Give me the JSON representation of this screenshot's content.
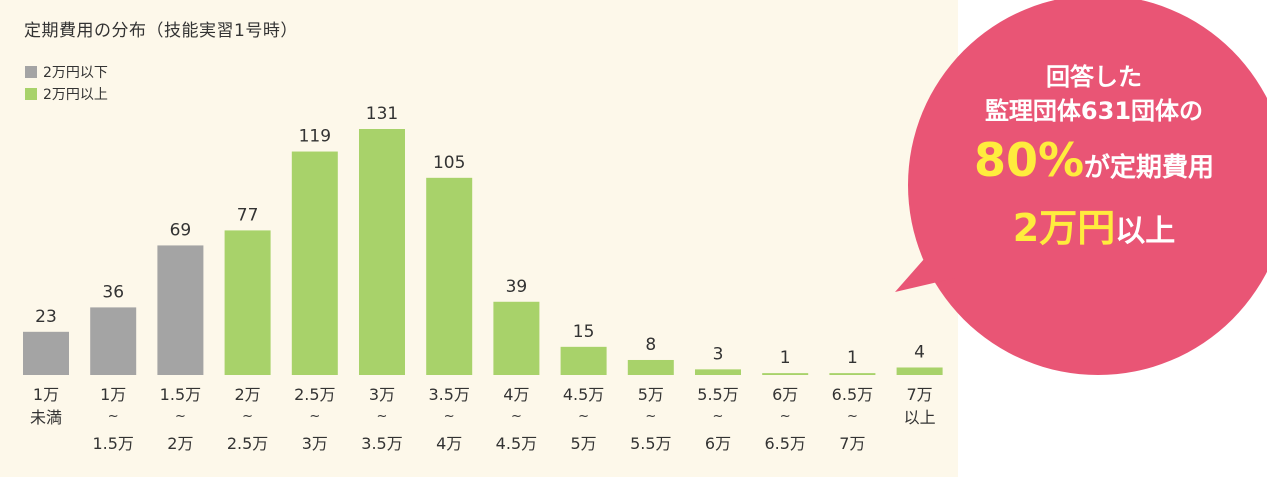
{
  "colors": {
    "panel_background": "#fdf8ea",
    "gray_bar": "#a4a4a4",
    "green_bar": "#a8d26a",
    "callout_pink": "#e95575",
    "callout_highlight": "#ffec3d"
  },
  "chart_data": {
    "type": "bar",
    "title": "定期費用の分布（技能実習1号時）",
    "legend": [
      {
        "label": "2万円以下",
        "color": "#a4a4a4"
      },
      {
        "label": "2万円以上",
        "color": "#a8d26a"
      }
    ],
    "legend_position": "top-left",
    "categories": [
      [
        "1万",
        "未満"
      ],
      [
        "1万",
        "~",
        "1.5万"
      ],
      [
        "1.5万",
        "~",
        "2万"
      ],
      [
        "2万",
        "~",
        "2.5万"
      ],
      [
        "2.5万",
        "~",
        "3万"
      ],
      [
        "3万",
        "~",
        "3.5万"
      ],
      [
        "3.5万",
        "~",
        "4万"
      ],
      [
        "4万",
        "~",
        "4.5万"
      ],
      [
        "4.5万",
        "~",
        "5万"
      ],
      [
        "5万",
        "~",
        "5.5万"
      ],
      [
        "5.5万",
        "~",
        "6万"
      ],
      [
        "6万",
        "~",
        "6.5万"
      ],
      [
        "6.5万",
        "~",
        "7万"
      ],
      [
        "7万",
        "以上"
      ]
    ],
    "values": [
      23,
      36,
      69,
      77,
      119,
      131,
      105,
      39,
      15,
      8,
      3,
      1,
      1,
      4
    ],
    "bar_group": [
      "2万円以下",
      "2万円以下",
      "2万円以下",
      "2万円以上",
      "2万円以上",
      "2万円以上",
      "2万円以上",
      "2万円以上",
      "2万円以上",
      "2万円以上",
      "2万円以上",
      "2万円以上",
      "2万円以上",
      "2万円以上"
    ],
    "data_labels": [
      "23",
      "36",
      "69",
      "77",
      "119",
      "131",
      "105",
      "39",
      "15",
      "8",
      "3",
      "1",
      "1",
      "4"
    ],
    "ylim": [
      0,
      131
    ],
    "grid": false,
    "xlabel": "",
    "ylabel": ""
  },
  "callout": {
    "line1": "回答した",
    "line2": "監理団体631団体の",
    "line3_highlight": "80%",
    "line3_rest": "が定期費用",
    "line4_highlight": "2万円",
    "line4_rest": "以上"
  }
}
